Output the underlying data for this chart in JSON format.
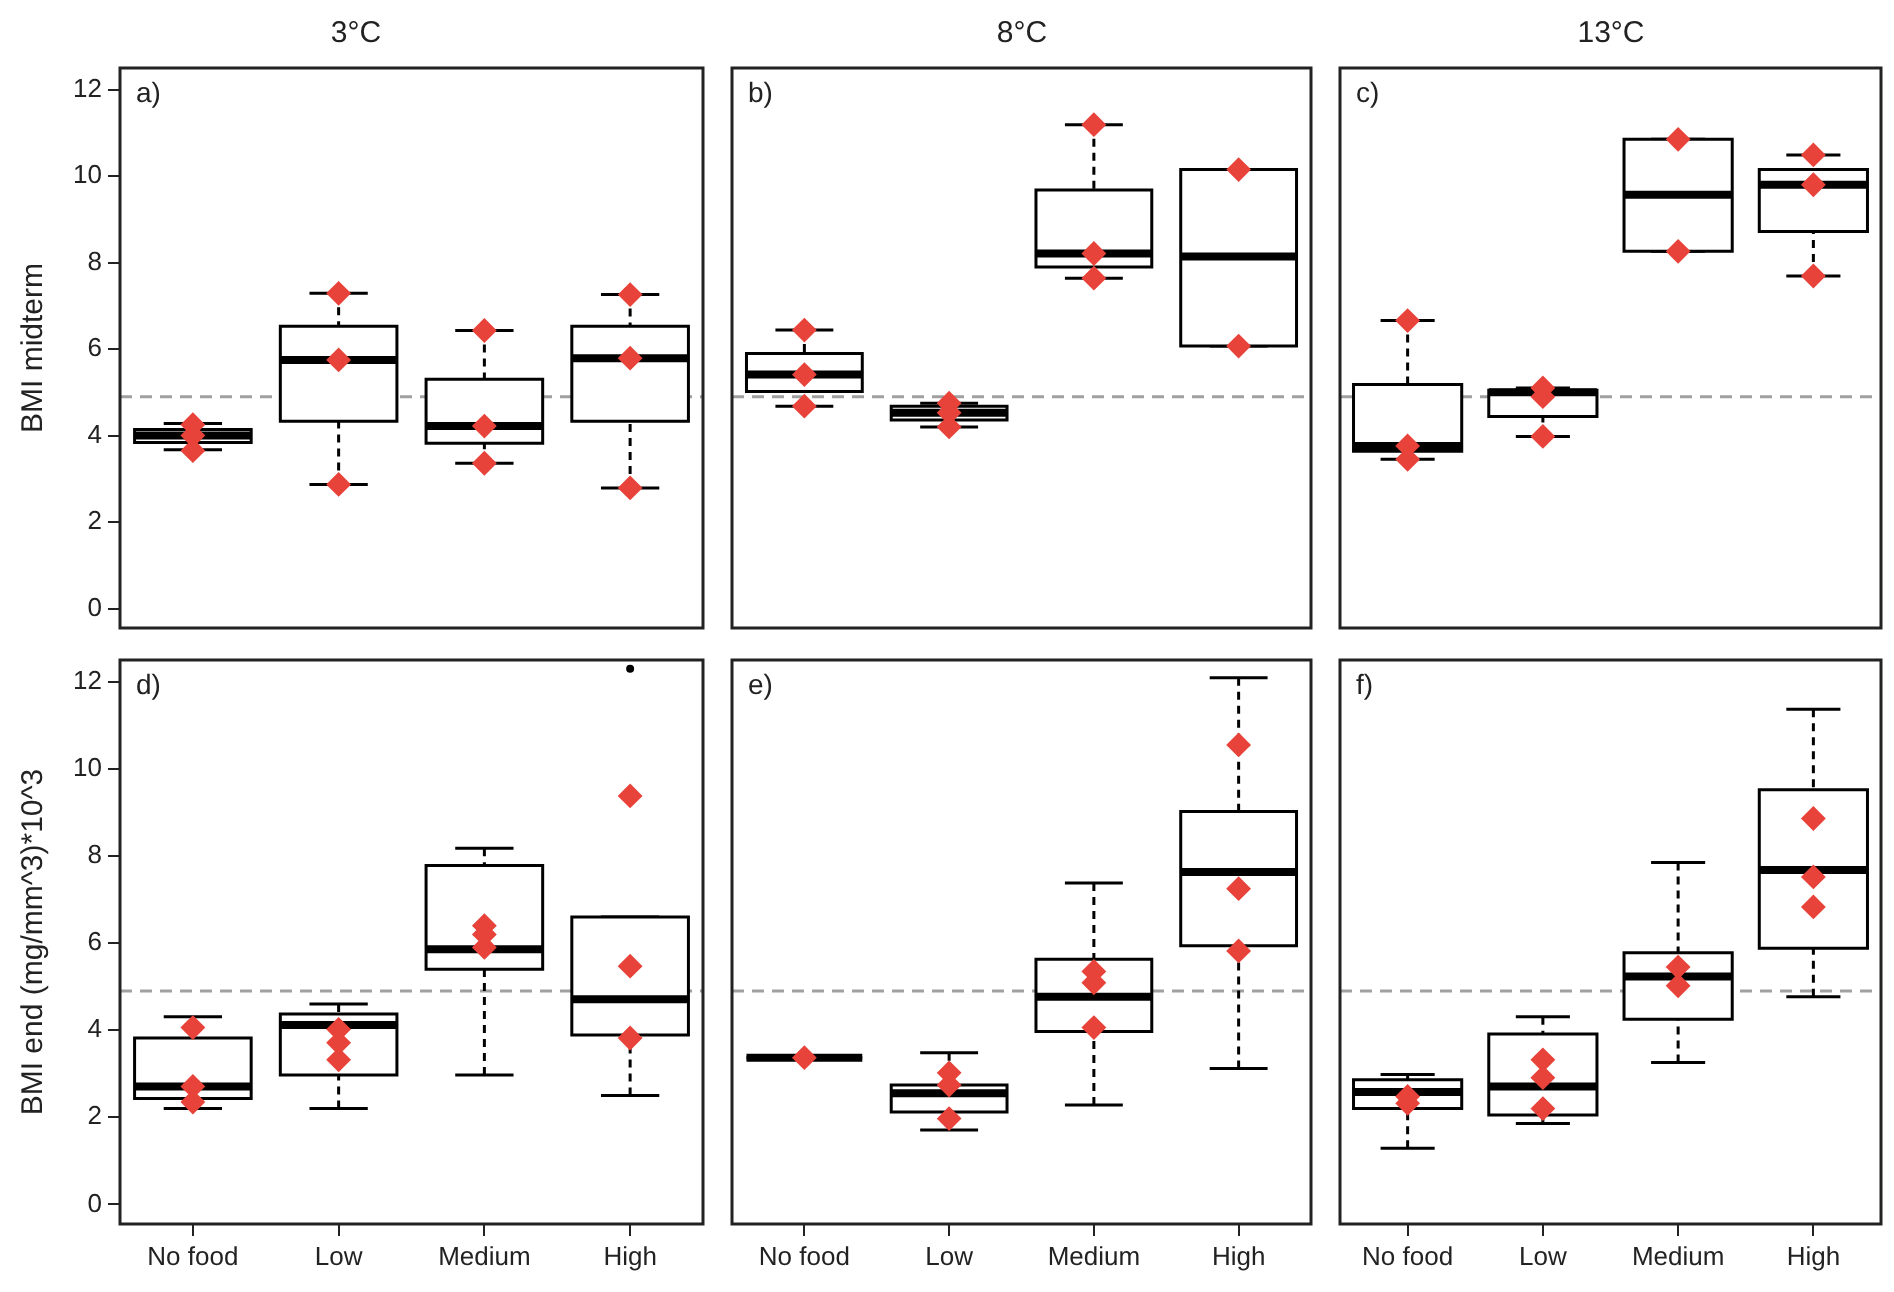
{
  "chart_data": [
    {
      "type": "box",
      "title": "3°C",
      "ylabel": "BMI midterm",
      "categories": [
        "No food",
        "Low",
        "Medium",
        "High"
      ],
      "ylim": [
        -0.45,
        12.5
      ],
      "yticks": [
        0,
        2,
        4,
        6,
        8,
        10,
        12
      ],
      "tick_labels": "y",
      "annotations": [
        "a)"
      ],
      "ref_lines": [
        {
          "axis": "y",
          "value": 4.9,
          "color": "#a0a0a0",
          "line_style": "dashed"
        }
      ],
      "boxes": [
        {
          "low": 3.67,
          "q1": 3.84,
          "median": 4.0,
          "q3": 4.14,
          "high": 4.28
        },
        {
          "low": 2.87,
          "q1": 4.33,
          "median": 5.75,
          "q3": 6.53,
          "high": 7.29
        },
        {
          "low": 3.36,
          "q1": 3.82,
          "median": 4.22,
          "q3": 5.3,
          "high": 6.43
        },
        {
          "low": 2.79,
          "q1": 4.33,
          "median": 5.79,
          "q3": 6.53,
          "high": 7.26
        }
      ],
      "series": [
        {
          "type": "scatter",
          "marker": "diamond",
          "color": "#e8433a",
          "x": [
            "No food",
            "No food",
            "No food",
            "Low",
            "Low",
            "Low",
            "Medium",
            "Medium",
            "Medium",
            "High",
            "High",
            "High"
          ],
          "values": [
            4.25,
            4.0,
            3.65,
            7.29,
            5.75,
            2.87,
            6.43,
            4.22,
            3.36,
            7.26,
            5.79,
            2.79
          ]
        }
      ]
    },
    {
      "type": "box",
      "title": "8°C",
      "categories": [
        "No food",
        "Low",
        "Medium",
        "High"
      ],
      "ylim": [
        -0.45,
        12.5
      ],
      "yticks": [
        0,
        2,
        4,
        6,
        8,
        10,
        12
      ],
      "tick_labels": false,
      "annotations": [
        "b)"
      ],
      "ref_lines": [
        {
          "axis": "y",
          "value": 4.9,
          "color": "#a0a0a0",
          "line_style": "dashed"
        }
      ],
      "boxes": [
        {
          "low": 4.68,
          "q1": 5.02,
          "median": 5.41,
          "q3": 5.9,
          "high": 6.44
        },
        {
          "low": 4.2,
          "q1": 4.36,
          "median": 4.53,
          "q3": 4.68,
          "high": 4.75
        },
        {
          "low": 7.64,
          "q1": 7.9,
          "median": 8.21,
          "q3": 9.68,
          "high": 11.19
        },
        {
          "low": 6.07,
          "q1": 6.07,
          "median": 8.14,
          "q3": 10.15,
          "high": 10.15
        }
      ],
      "series": [
        {
          "type": "scatter",
          "marker": "diamond",
          "color": "#e8433a",
          "x": [
            "No food",
            "No food",
            "No food",
            "Low",
            "Low",
            "Low",
            "Medium",
            "Medium",
            "Medium",
            "High",
            "High"
          ],
          "values": [
            6.44,
            5.41,
            4.68,
            4.75,
            4.53,
            4.2,
            11.19,
            8.21,
            7.64,
            10.15,
            6.07
          ]
        }
      ]
    },
    {
      "type": "box",
      "title": "13°C",
      "categories": [
        "No food",
        "Low",
        "Medium",
        "High"
      ],
      "ylim": [
        -0.45,
        12.5
      ],
      "yticks": [
        0,
        2,
        4,
        6,
        8,
        10,
        12
      ],
      "tick_labels": false,
      "annotations": [
        "c)"
      ],
      "ref_lines": [
        {
          "axis": "y",
          "value": 4.9,
          "color": "#a0a0a0",
          "line_style": "dashed"
        }
      ],
      "boxes": [
        {
          "low": 3.45,
          "q1": 3.64,
          "median": 3.76,
          "q3": 5.18,
          "high": 6.66
        },
        {
          "low": 3.98,
          "q1": 4.44,
          "median": 5.0,
          "q3": 5.05,
          "high": 5.1
        },
        {
          "low": 8.26,
          "q1": 8.26,
          "median": 9.57,
          "q3": 10.85,
          "high": 10.85
        },
        {
          "low": 7.69,
          "q1": 8.72,
          "median": 9.8,
          "q3": 10.15,
          "high": 10.49
        }
      ],
      "series": [
        {
          "type": "scatter",
          "marker": "diamond",
          "color": "#e8433a",
          "x": [
            "No food",
            "No food",
            "No food",
            "Low",
            "Low",
            "Low",
            "Medium",
            "Medium",
            "High",
            "High",
            "High"
          ],
          "values": [
            6.66,
            3.76,
            3.45,
            5.1,
            4.9,
            3.98,
            10.85,
            8.26,
            10.49,
            9.8,
            7.69
          ]
        }
      ]
    },
    {
      "type": "box",
      "ylabel": "BMI end (mg/mm^3)*10^3",
      "categories": [
        "No food",
        "Low",
        "Medium",
        "High"
      ],
      "ylim": [
        -0.45,
        12.5
      ],
      "yticks": [
        0,
        2,
        4,
        6,
        8,
        10,
        12
      ],
      "annotations": [
        "d)"
      ],
      "ref_lines": [
        {
          "axis": "y",
          "value": 4.9,
          "color": "#a0a0a0",
          "line_style": "dashed"
        }
      ],
      "boxes": [
        {
          "low": 2.2,
          "q1": 2.43,
          "median": 2.71,
          "q3": 3.82,
          "high": 4.31
        },
        {
          "low": 2.2,
          "q1": 2.97,
          "median": 4.12,
          "q3": 4.37,
          "high": 4.6
        },
        {
          "low": 2.97,
          "q1": 5.4,
          "median": 5.86,
          "q3": 7.78,
          "high": 8.18
        },
        {
          "low": 2.5,
          "q1": 3.89,
          "median": 4.71,
          "q3": 6.6,
          "high": 6.6,
          "outliers": [
            12.3
          ]
        }
      ],
      "series": [
        {
          "type": "scatter",
          "marker": "diamond",
          "color": "#e8433a",
          "x": [
            "No food",
            "No food",
            "No food",
            "Low",
            "Low",
            "Low",
            "Medium",
            "Medium",
            "Medium",
            "High",
            "High",
            "High"
          ],
          "values": [
            4.06,
            2.71,
            2.35,
            4.02,
            3.71,
            3.32,
            6.4,
            6.2,
            5.9,
            9.38,
            5.47,
            3.82
          ]
        }
      ]
    },
    {
      "type": "box",
      "colors": [
        "#000000",
        "#ffffff",
        "#ffffff",
        "#ffffff"
      ],
      "categories": [
        "No food",
        "Low",
        "Medium",
        "High"
      ],
      "ylim": [
        -0.45,
        12.5
      ],
      "yticks": [
        0,
        2,
        4,
        6,
        8,
        10,
        12
      ],
      "tick_labels": "x",
      "annotations": [
        "e)"
      ],
      "ref_lines": [
        {
          "axis": "y",
          "value": 4.9,
          "color": "#a0a0a0",
          "line_style": "dashed"
        }
      ],
      "boxes": [
        {
          "low": 3.37,
          "q1": 3.37,
          "median": 3.37,
          "q3": 3.37,
          "high": 3.37
        },
        {
          "low": 1.71,
          "q1": 2.12,
          "median": 2.55,
          "q3": 2.74,
          "high": 3.48
        },
        {
          "low": 2.28,
          "q1": 3.97,
          "median": 4.77,
          "q3": 5.63,
          "high": 7.38
        },
        {
          "low": 3.12,
          "q1": 5.94,
          "median": 7.63,
          "q3": 9.02,
          "high": 12.09
        }
      ],
      "series": [
        {
          "type": "scatter",
          "marker": "diamond",
          "color": "#e8433a",
          "x": [
            "No food",
            "Low",
            "Low",
            "Low",
            "Medium",
            "Medium",
            "Medium",
            "High",
            "High",
            "High"
          ],
          "values": [
            3.37,
            3.02,
            2.74,
            1.97,
            5.35,
            5.09,
            4.06,
            10.55,
            7.25,
            5.82
          ]
        }
      ]
    },
    {
      "type": "box",
      "categories": [
        "No food",
        "Low",
        "Medium",
        "High"
      ],
      "ylim": [
        -0.45,
        12.5
      ],
      "yticks": [
        0,
        2,
        4,
        6,
        8,
        10,
        12
      ],
      "tick_labels": "x",
      "annotations": [
        "f)"
      ],
      "ref_lines": [
        {
          "axis": "y",
          "value": 4.9,
          "color": "#a0a0a0",
          "line_style": "dashed"
        }
      ],
      "boxes": [
        {
          "low": 1.29,
          "q1": 2.2,
          "median": 2.58,
          "q3": 2.86,
          "high": 2.98
        },
        {
          "low": 1.86,
          "q1": 2.05,
          "median": 2.71,
          "q3": 3.91,
          "high": 4.31
        },
        {
          "low": 3.26,
          "q1": 4.25,
          "median": 5.23,
          "q3": 5.78,
          "high": 7.85
        },
        {
          "low": 4.77,
          "q1": 5.88,
          "median": 7.68,
          "q3": 9.52,
          "high": 11.37
        }
      ],
      "series": [
        {
          "type": "scatter",
          "marker": "diamond",
          "color": "#e8433a",
          "x": [
            "No food",
            "No food",
            "Low",
            "Low",
            "Low",
            "Medium",
            "Medium",
            "High",
            "High",
            "High"
          ],
          "values": [
            2.48,
            2.32,
            3.32,
            2.91,
            2.2,
            5.45,
            5.02,
            8.86,
            7.52,
            6.83
          ]
        }
      ]
    }
  ]
}
